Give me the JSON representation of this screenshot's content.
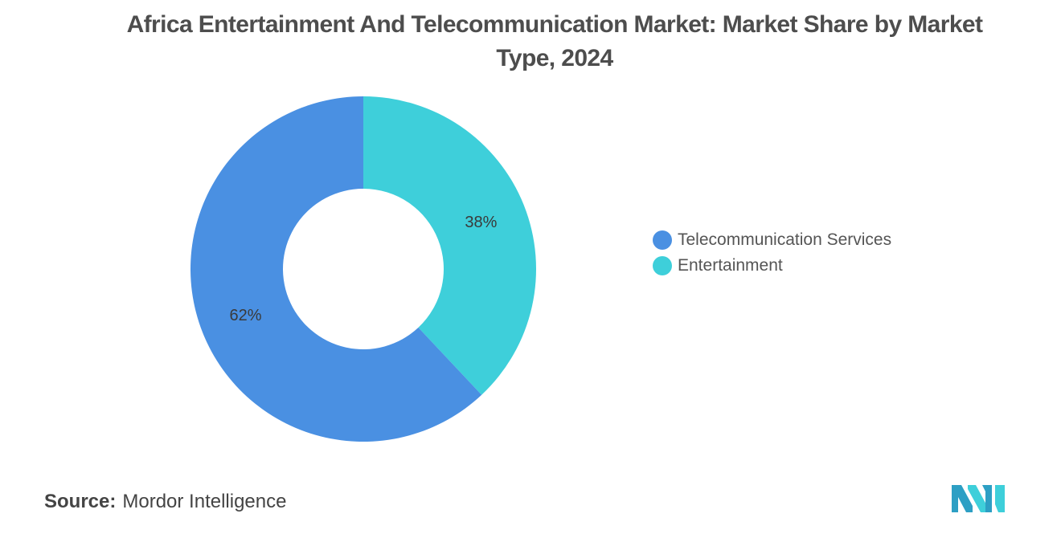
{
  "title": "Africa Entertainment And Telecommunication Market: Market Share by Market Type, 2024",
  "source": {
    "label": "Source:",
    "value": "Mordor Intelligence"
  },
  "logo_icon": "mordor-intelligence-logo",
  "chart_data": {
    "type": "pie",
    "donut": true,
    "title": "Africa Entertainment And Telecommunication Market: Market Share by Market Type, 2024",
    "start_angle_deg": 0,
    "direction": "clockwise",
    "legend_position": "right",
    "slices": [
      {
        "label": "Entertainment",
        "value": 38,
        "display": "38%",
        "color": "#3ecfda"
      },
      {
        "label": "Telecommunication Services",
        "value": 62,
        "display": "62%",
        "color": "#4a90e2"
      }
    ],
    "legend": [
      {
        "label": "Telecommunication Services",
        "color": "#4a90e2"
      },
      {
        "label": "Entertainment",
        "color": "#3ecfda"
      }
    ]
  }
}
